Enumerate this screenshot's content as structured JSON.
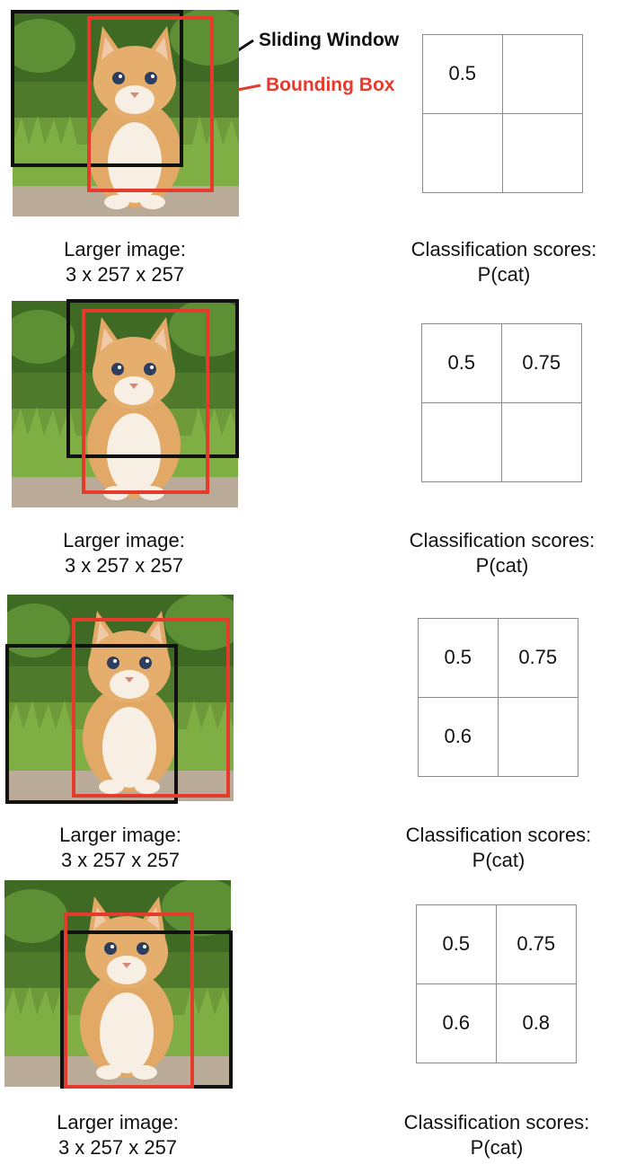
{
  "legend": {
    "sliding_window": "Sliding Window",
    "bounding_box": "Bounding Box",
    "window_color": "#111111",
    "box_color": "#e53a2c"
  },
  "panels": [
    {
      "image_caption_line1": "Larger image:",
      "image_caption_line2": "3 x 257 x 257",
      "scores_caption_line1": "Classification scores:",
      "scores_caption_line2": "P(cat)",
      "scores": [
        "0.5",
        "",
        "",
        ""
      ]
    },
    {
      "image_caption_line1": "Larger image:",
      "image_caption_line2": "3 x 257 x 257",
      "scores_caption_line1": "Classification scores:",
      "scores_caption_line2": "P(cat)",
      "scores": [
        "0.5",
        "0.75",
        "",
        ""
      ]
    },
    {
      "image_caption_line1": "Larger image:",
      "image_caption_line2": "3 x 257 x 257",
      "scores_caption_line1": "Classification scores:",
      "scores_caption_line2": "P(cat)",
      "scores": [
        "0.5",
        "0.75",
        "0.6",
        ""
      ]
    },
    {
      "image_caption_line1": "Larger image:",
      "image_caption_line2": "3 x 257 x 257",
      "scores_caption_line1": "Classification scores:",
      "scores_caption_line2": "P(cat)",
      "scores": [
        "0.5",
        "0.75",
        "0.6",
        "0.8"
      ]
    }
  ]
}
